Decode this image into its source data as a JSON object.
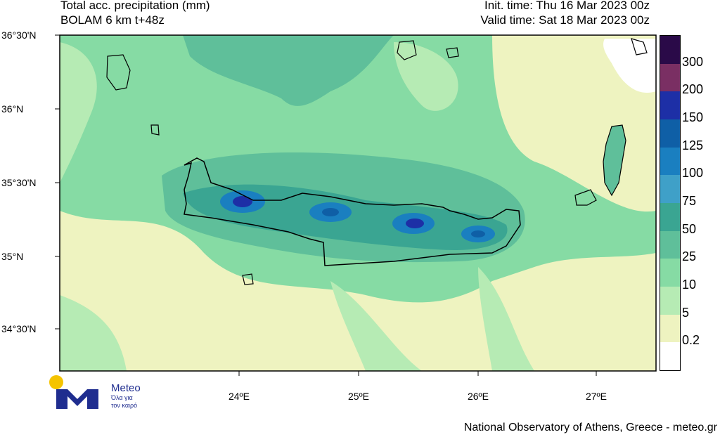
{
  "header": {
    "title_line1": "Total acc. precipitation (mm)",
    "title_line2": "BOLAM 6 km t+48z",
    "init_time": "Init. time: Thu 16 Mar 2023 00z",
    "valid_time": "Valid time: Sat 18 Mar 2023 00z"
  },
  "axes": {
    "lat_labels": [
      "36°30'N",
      "36°N",
      "35°30'N",
      "35°N",
      "34°30'N"
    ],
    "lon_labels": [
      "24ºE",
      "25ºE",
      "26ºE",
      "27ºE"
    ]
  },
  "legend": {
    "levels": [
      "300",
      "200",
      "150",
      "125",
      "100",
      "75",
      "50",
      "25",
      "10",
      "5",
      "0.2"
    ],
    "colors": [
      "#2a0a48",
      "#7a2f63",
      "#1d2fa6",
      "#0f5fa6",
      "#1a7fc0",
      "#3fa0c8",
      "#3aa592",
      "#5fbf9a",
      "#86dba4",
      "#b6ebb4",
      "#eef3c0",
      "#ffffff"
    ]
  },
  "map_colors": {
    "light_yellow": "#eef3c0",
    "light_green": "#b6ebb4",
    "green": "#86dba4",
    "teal": "#5fbf9a",
    "dark_teal": "#3aa592",
    "blue": "#1a7fc0"
  },
  "footer": {
    "credit": "National Observatory of Athens, Greece - meteo.gr"
  },
  "logo": {
    "brand": "Meteo",
    "tagline_1": "Όλα για",
    "tagline_2": "τον καιρό"
  }
}
